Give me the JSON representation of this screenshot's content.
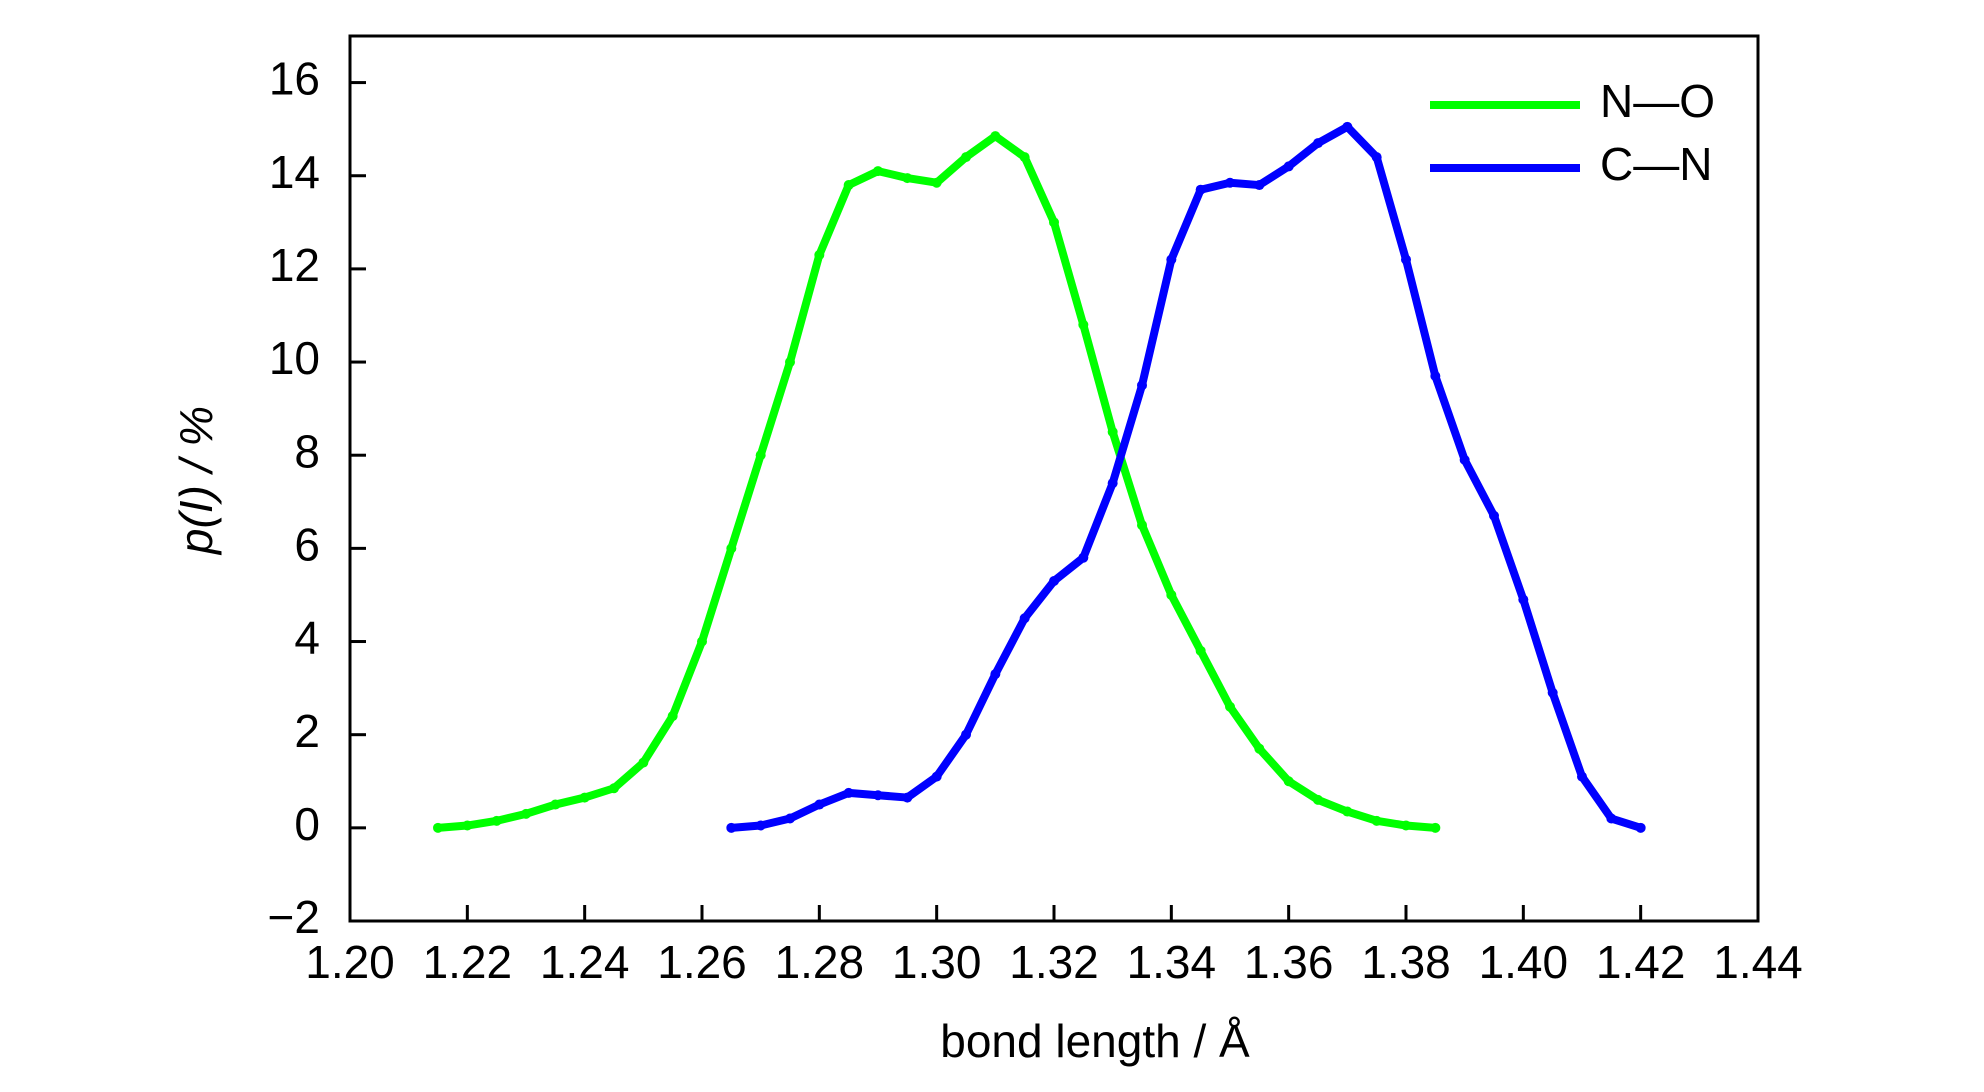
{
  "chart_data": {
    "type": "line",
    "xlabel": "bond length / Å",
    "ylabel": "p(I) / %",
    "xlim": [
      1.2,
      1.44
    ],
    "ylim": [
      -2,
      17
    ],
    "xticks": [
      {
        "value": 1.2,
        "label": "1.20"
      },
      1.22,
      1.24,
      1.26,
      1.28,
      {
        "value": 1.3,
        "label": "1.30"
      },
      1.32,
      1.34,
      1.36,
      1.38,
      {
        "value": 1.4,
        "label": "1.40"
      },
      1.42,
      1.44
    ],
    "yticks": [
      {
        "value": -2,
        "label": "−2"
      },
      0,
      2,
      4,
      6,
      8,
      10,
      12,
      14,
      16
    ],
    "legend": "upper right",
    "series": [
      {
        "name": "N—O",
        "color": "#00ff00",
        "x": [
          1.215,
          1.22,
          1.225,
          1.23,
          1.235,
          1.24,
          1.245,
          1.25,
          1.255,
          1.26,
          1.265,
          1.27,
          1.275,
          1.28,
          1.285,
          1.29,
          1.295,
          1.3,
          1.305,
          1.31,
          1.315,
          1.32,
          1.325,
          1.33,
          1.335,
          1.34,
          1.345,
          1.35,
          1.355,
          1.36,
          1.365,
          1.37,
          1.375,
          1.38,
          1.385
        ],
        "values": [
          0,
          0.05,
          0.15,
          0.3,
          0.5,
          0.65,
          0.85,
          1.4,
          2.4,
          4.0,
          6.0,
          8.0,
          10.0,
          12.3,
          13.8,
          14.1,
          13.95,
          13.85,
          14.4,
          14.85,
          14.4,
          13.0,
          10.8,
          8.5,
          6.5,
          5.0,
          3.8,
          2.6,
          1.7,
          1.0,
          0.6,
          0.35,
          0.15,
          0.05,
          0
        ]
      },
      {
        "name": "C—N",
        "color": "#0000ff",
        "x": [
          1.265,
          1.27,
          1.275,
          1.28,
          1.285,
          1.29,
          1.295,
          1.3,
          1.305,
          1.31,
          1.315,
          1.32,
          1.325,
          1.33,
          1.335,
          1.34,
          1.345,
          1.35,
          1.355,
          1.36,
          1.365,
          1.37,
          1.375,
          1.38,
          1.385,
          1.39,
          1.395,
          1.4,
          1.405,
          1.41,
          1.415,
          1.42
        ],
        "values": [
          0,
          0.05,
          0.2,
          0.5,
          0.75,
          0.7,
          0.65,
          1.1,
          2.0,
          3.3,
          4.5,
          5.3,
          5.8,
          7.4,
          9.5,
          12.2,
          13.7,
          13.85,
          13.8,
          14.2,
          14.7,
          15.05,
          14.4,
          12.2,
          9.7,
          7.9,
          6.7,
          4.9,
          2.9,
          1.1,
          0.2,
          0
        ]
      }
    ]
  }
}
